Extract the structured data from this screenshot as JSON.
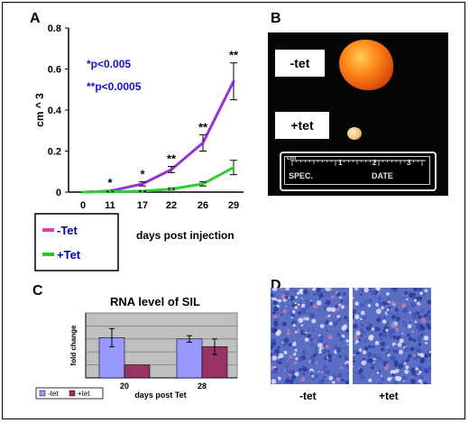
{
  "panels": {
    "a": "A",
    "b": "B",
    "c": "C",
    "d": "D"
  },
  "chart_a": {
    "legend": {
      "minus_tet": "-Tet",
      "plus_tet": "+Tet"
    },
    "stats_note": {
      "line1": "*p<0.005",
      "line2": "**p<0.0005"
    }
  },
  "panel_b": {
    "label_minus": "-tet",
    "label_plus": "+tet",
    "ruler": {
      "cm_label": "cm",
      "ticks": [
        "1",
        "2",
        "3"
      ],
      "spec": "SPEC.",
      "date": "DATE"
    }
  },
  "panel_d": {
    "caption_left": "-tet",
    "caption_right": "+tet"
  },
  "chart_data": [
    {
      "type": "line",
      "x": [
        0,
        11,
        17,
        22,
        26,
        29
      ],
      "xticks": [
        "0",
        "11",
        "17",
        "22",
        "26",
        "29"
      ],
      "xlabel": "days post injection",
      "ylabel": "cm ^ 3",
      "ylim": [
        0,
        0.8
      ],
      "yticks": [
        "0",
        "0.2",
        "0.4",
        "0.6",
        "0.8"
      ],
      "series": [
        {
          "name": "-Tet",
          "color": "#9b30d6",
          "values": [
            0,
            0.005,
            0.04,
            0.11,
            0.24,
            0.54
          ],
          "errors": [
            0,
            0.003,
            0.01,
            0.015,
            0.04,
            0.09
          ],
          "significance": [
            "",
            "*",
            "*",
            "**",
            "**",
            "**"
          ]
        },
        {
          "name": "+Tet",
          "color": "#33cc33",
          "values": [
            0,
            0.002,
            0.005,
            0.015,
            0.04,
            0.12
          ],
          "errors": [
            0,
            0.001,
            0.002,
            0.005,
            0.01,
            0.035
          ]
        }
      ],
      "grid": false,
      "legend_position": "bottom-left"
    },
    {
      "type": "bar",
      "title": "RNA level of SIL",
      "categories": [
        "20",
        "28"
      ],
      "xlabel": "days post Tet",
      "ylabel": "fold change",
      "series": [
        {
          "name": "-tet",
          "color": "#9999ff",
          "values": [
            3.1,
            3.0
          ],
          "errors": [
            0.7,
            0.25
          ]
        },
        {
          "name": "+tet",
          "color": "#993366",
          "values": [
            1.0,
            2.4
          ],
          "errors": [
            0,
            0.6
          ]
        }
      ],
      "ylim": [
        0,
        5
      ],
      "grid": true,
      "legend_position": "bottom-left"
    }
  ]
}
